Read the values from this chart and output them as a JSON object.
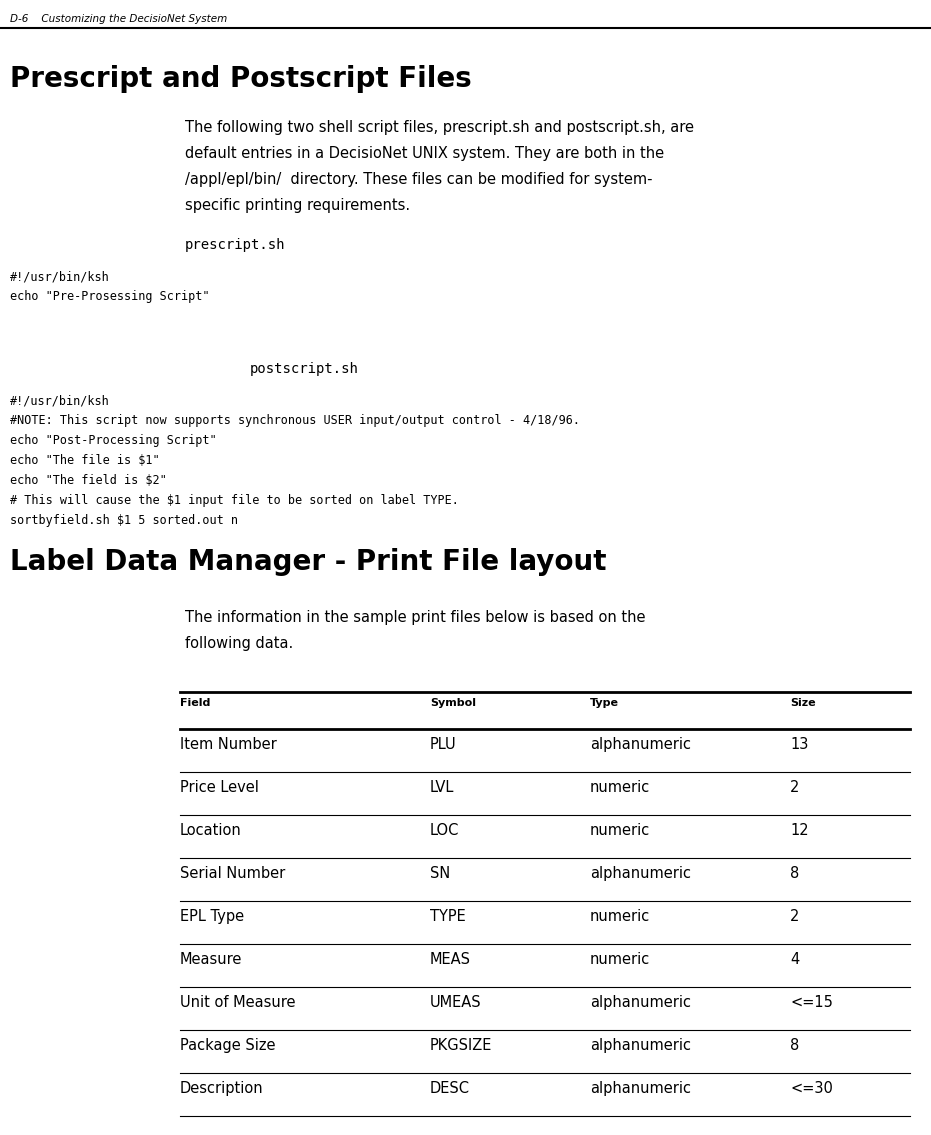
{
  "header_text": "D-6    Customizing the DecisioNet System",
  "section1_title": "Prescript and Postscript Files",
  "section1_body_lines": [
    "The following two shell script files, prescript.sh and postscript.sh, are",
    "default entries in a DecisioNet UNIX system. They are both in the",
    "/appl/epl/bin/  directory. These files can be modified for system-",
    "specific printing requirements."
  ],
  "prescript_label": "prescript.sh",
  "prescript_code_lines": [
    "#!/usr/bin/ksh",
    "echo \"Pre-Prosessing Script\""
  ],
  "postscript_label": "postscript.sh",
  "postscript_code_lines": [
    "#!/usr/bin/ksh",
    "#NOTE: This script now supports synchronous USER input/output control - 4/18/96.",
    "echo \"Post-Processing Script\"",
    "echo \"The file is $1\"",
    "echo \"The field is $2\"",
    "# This will cause the $1 input file to be sorted on label TYPE.",
    "sortbyfield.sh $1 5 sorted.out n"
  ],
  "section2_title": "Label Data Manager - Print File layout",
  "section2_body_lines": [
    "The information in the sample print files below is based on the",
    "following data."
  ],
  "table_headers": [
    "Field",
    "Symbol",
    "Type",
    "Size"
  ],
  "table_rows": [
    [
      "Item Number",
      "PLU",
      "alphanumeric",
      "13"
    ],
    [
      "Price Level",
      "LVL",
      "numeric",
      "2"
    ],
    [
      "Location",
      "LOC",
      "numeric",
      "12"
    ],
    [
      "Serial Number",
      "SN",
      "alphanumeric",
      "8"
    ],
    [
      "EPL Type",
      "TYPE",
      "numeric",
      "2"
    ],
    [
      "Measure",
      "MEAS",
      "numeric",
      "4"
    ],
    [
      "Unit of Measure",
      "UMEAS",
      "alphanumeric",
      "<=15"
    ],
    [
      "Package Size",
      "PKGSIZE",
      "alphanumeric",
      "8"
    ],
    [
      "Description",
      "DESC",
      "alphanumeric",
      "<=30"
    ]
  ],
  "bg_color": "#ffffff",
  "text_color": "#000000",
  "mono_font": "DejaVu Sans Mono",
  "body_font": "DejaVu Sans"
}
